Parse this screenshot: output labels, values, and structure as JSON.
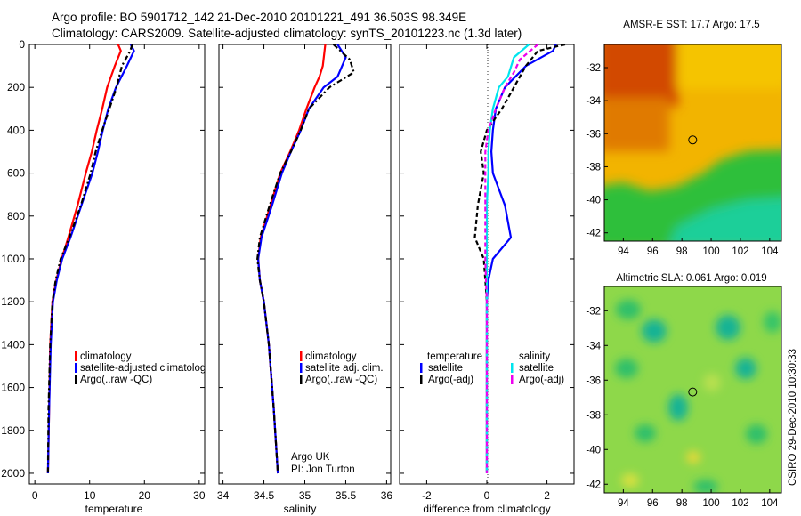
{
  "header": {
    "line1": "Argo profile: BO 5901712_142 21-Dec-2010 20101221_491 36.503S 98.349E",
    "line2": "Climatology: CARS2009. Satellite-adjusted climatology: synTS_20101223.nc (1.3d later)"
  },
  "colors": {
    "climatology": "#ff0000",
    "satellite": "#0000ff",
    "argo": "#000000",
    "satellite_salinity": "#00e5ee",
    "argo_adj_salinity": "#ee00ee"
  },
  "chart_data": [
    {
      "type": "line",
      "xlabel": "temperature",
      "xticks": [
        "0",
        "10",
        "20",
        "30"
      ],
      "xlim": [
        -1,
        31
      ],
      "ylim": [
        2050,
        0
      ],
      "yticks": [
        "0",
        "200",
        "400",
        "600",
        "800",
        "1000",
        "1200",
        "1400",
        "1600",
        "1800",
        "2000"
      ],
      "legend": [
        "climatology",
        "satellite-adjusted climatology",
        "Argo(..raw -QC)"
      ],
      "legend_placement": "bottom-center",
      "series": [
        {
          "name": "climatology",
          "color": "#ff0000",
          "dash": "",
          "x": [
            15.2,
            15.7,
            14.6,
            13.2,
            12.3,
            11.3,
            10.4,
            9.3,
            7.8,
            6.1,
            4.9,
            3.9,
            3.2,
            2.8,
            2.6,
            2.4
          ],
          "y": [
            0,
            30,
            100,
            200,
            300,
            400,
            500,
            600,
            750,
            900,
            1000,
            1100,
            1200,
            1400,
            1700,
            2000
          ]
        },
        {
          "name": "satellite-adjusted climatology",
          "color": "#0000ff",
          "dash": "",
          "x": [
            17.5,
            18.1,
            16.8,
            14.8,
            13.4,
            12.4,
            11.5,
            10.5,
            8.5,
            6.5,
            5.0,
            4.0,
            3.3,
            2.9,
            2.6,
            2.4
          ],
          "y": [
            0,
            30,
            100,
            200,
            300,
            400,
            500,
            600,
            750,
            900,
            1000,
            1100,
            1200,
            1400,
            1700,
            2000
          ]
        },
        {
          "name": "Argo(..raw -QC)",
          "color": "#000000",
          "dash": "6,3,2,3",
          "x": [
            17.8,
            17.4,
            15.9,
            14.9,
            13.6,
            12.3,
            11.1,
            10.2,
            8.4,
            6.3,
            4.7,
            3.8,
            3.2,
            2.8,
            2.5,
            2.4
          ],
          "y": [
            0,
            30,
            100,
            200,
            300,
            400,
            500,
            600,
            750,
            900,
            1000,
            1100,
            1200,
            1400,
            1700,
            2000
          ]
        }
      ]
    },
    {
      "type": "line",
      "xlabel": "salinity",
      "xticks": [
        "34",
        "34.5",
        "35",
        "35.5",
        "36"
      ],
      "xlim": [
        33.95,
        36.05
      ],
      "ylim": [
        2050,
        0
      ],
      "legend": [
        "climatology",
        "satellite adj. clim.",
        "Argo(..raw -QC)"
      ],
      "legend_placement": "bottom-center",
      "annotation": [
        "Argo UK",
        "PI: Jon Turton"
      ],
      "series": [
        {
          "name": "climatology",
          "color": "#ff0000",
          "dash": "",
          "x": [
            35.25,
            35.22,
            35.18,
            35.12,
            35.02,
            34.93,
            34.82,
            34.7,
            34.58,
            34.46,
            34.43,
            34.45,
            34.5,
            34.56,
            34.62,
            34.67
          ],
          "y": [
            0,
            100,
            150,
            200,
            300,
            400,
            500,
            600,
            750,
            900,
            1000,
            1100,
            1200,
            1400,
            1700,
            2000
          ]
        },
        {
          "name": "satellite adj. clim.",
          "color": "#0000ff",
          "dash": "",
          "x": [
            35.4,
            35.5,
            35.4,
            35.23,
            35.05,
            34.95,
            34.83,
            34.72,
            34.6,
            34.47,
            34.43,
            34.45,
            34.5,
            34.56,
            34.62,
            34.67
          ],
          "y": [
            0,
            60,
            150,
            200,
            300,
            400,
            500,
            600,
            750,
            900,
            1000,
            1100,
            1200,
            1400,
            1700,
            2000
          ]
        },
        {
          "name": "Argo(..raw -QC)",
          "color": "#000000",
          "dash": "6,3,2,3",
          "x": [
            35.35,
            35.55,
            35.6,
            35.3,
            35.05,
            34.95,
            34.83,
            34.7,
            34.57,
            34.45,
            34.42,
            34.45,
            34.5,
            34.56,
            34.62,
            34.67
          ],
          "y": [
            0,
            70,
            130,
            200,
            300,
            400,
            500,
            600,
            750,
            900,
            1000,
            1100,
            1200,
            1400,
            1700,
            2000
          ]
        }
      ]
    },
    {
      "type": "line",
      "xlabel": "difference from climatology",
      "xticks": [
        "-2",
        "0",
        "2"
      ],
      "xlim": [
        -2.9,
        2.9
      ],
      "ylim": [
        2050,
        0
      ],
      "zero_line": true,
      "legend_groups": [
        {
          "title": "temperature",
          "entries": [
            "satellite",
            "Argo(-adj)"
          ]
        },
        {
          "title": "salinity",
          "entries": [
            "satellite",
            "Argo(-adj)"
          ]
        }
      ],
      "legend_placement": "bottom",
      "series": [
        {
          "name": "temperature satellite",
          "color": "#0000ff",
          "dash": "",
          "x": [
            2.3,
            2.2,
            1.3,
            0.6,
            0.3,
            0.2,
            0.15,
            0.2,
            0.6,
            0.8,
            0.2,
            0.05,
            0.0,
            0.0,
            0.0,
            0.0
          ],
          "y": [
            0,
            30,
            100,
            200,
            300,
            400,
            500,
            600,
            750,
            900,
            1000,
            1100,
            1200,
            1400,
            1700,
            2000
          ]
        },
        {
          "name": "temperature Argo(-adj)",
          "color": "#000000",
          "dash": "5,3",
          "x": [
            2.6,
            1.7,
            1.3,
            0.9,
            0.5,
            0.0,
            -0.2,
            -0.1,
            -0.3,
            -0.4,
            -0.1,
            -0.05,
            0.0,
            0.0,
            0.0,
            0.0
          ],
          "y": [
            0,
            30,
            100,
            200,
            300,
            400,
            500,
            600,
            750,
            900,
            1000,
            1100,
            1200,
            1400,
            1700,
            2000
          ]
        },
        {
          "name": "salinity satellite",
          "color": "#00e5ee",
          "dash": "",
          "x": [
            1.4,
            0.9,
            0.7,
            0.4,
            0.2,
            0.1,
            0.05,
            0.05,
            0.0,
            0.0,
            0.0,
            0.0,
            0.0,
            0.0,
            0.0,
            0.0
          ],
          "y": [
            0,
            60,
            150,
            200,
            300,
            400,
            500,
            600,
            750,
            900,
            1000,
            1100,
            1200,
            1400,
            1700,
            2000
          ]
        },
        {
          "name": "salinity Argo(-adj)",
          "color": "#ee00ee",
          "dash": "5,3",
          "x": [
            1.7,
            1.1,
            0.9,
            0.6,
            0.3,
            0.05,
            -0.05,
            -0.05,
            -0.05,
            -0.05,
            -0.05,
            -0.03,
            0.0,
            0.0,
            0.0,
            0.0
          ],
          "y": [
            0,
            70,
            130,
            200,
            300,
            400,
            500,
            600,
            750,
            900,
            1000,
            1100,
            1200,
            1400,
            1700,
            2000
          ]
        }
      ]
    },
    {
      "type": "heatmap",
      "title": "AMSR-E SST: 17.7  Argo: 17.5",
      "xticks": [
        "94",
        "96",
        "98",
        "100",
        "102",
        "104"
      ],
      "xlim": [
        92.7,
        104.8
      ],
      "yticks": [
        "-32",
        "-34",
        "-36",
        "-38",
        "-40",
        "-42"
      ],
      "ylim": [
        -42.5,
        -30.6
      ],
      "marker": {
        "lon": 98.349,
        "lat": -36.503
      }
    },
    {
      "type": "heatmap",
      "title": "Altimetric SLA: 0.061  Argo: 0.019",
      "xticks": [
        "94",
        "96",
        "98",
        "100",
        "102",
        "104"
      ],
      "xlim": [
        92.7,
        104.8
      ],
      "yticks": [
        "-32",
        "-34",
        "-36",
        "-38",
        "-40",
        "-42"
      ],
      "ylim": [
        -42.5,
        -30.6
      ],
      "marker": {
        "lon": 98.349,
        "lat": -36.503
      }
    }
  ],
  "footer_stamp": "CSIRO 29-Dec-2010 10:30:33"
}
